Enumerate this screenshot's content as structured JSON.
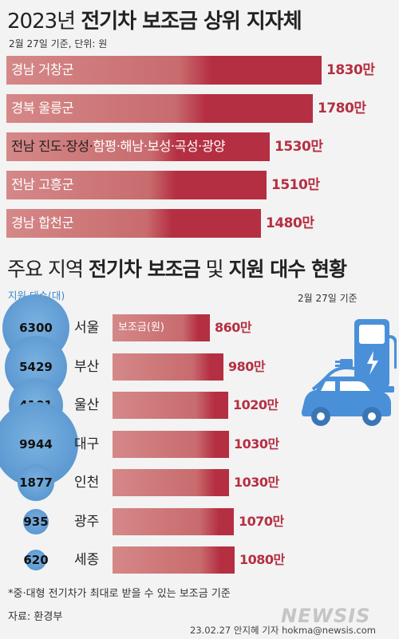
{
  "title1": {
    "year": "2023년",
    "main": "전기차 보조금 상위 지자체"
  },
  "sub1": "2월 27일 기준, 단위: 원",
  "title2": {
    "pre": "주요 지역",
    "main": "전기차 보조금",
    "mid": "및",
    "post": "지원 대수 현황"
  },
  "count_label": "지원 대수(대)",
  "sub2": "2월 27일 기준",
  "bar_legend": "보조금(원)",
  "footnote": "*중·대형 전기차가 최대로 받을 수 있는 보조금 기준",
  "source": "자료: 환경부",
  "credit": "23.02.27  안지혜 기자  hokma@newsis.com",
  "logo": "NEWSIS",
  "colors": {
    "bar_light": "#d58888",
    "bar_dark": "#b52f42",
    "value": "#b52f42",
    "circle": "#5b97cf",
    "accent_blue": "#3d86c6"
  },
  "chart_data": [
    {
      "type": "bar",
      "orientation": "horizontal",
      "title": "2023년 전기차 보조금 상위 지자체",
      "subtitle": "2월 27일 기준, 단위: 원",
      "categories": [
        "경남 거창군",
        "경북 울릉군",
        "전남 진도·장성·함평·해남·보성·곡성·광양",
        "전남 고흥군",
        "경남 합천군"
      ],
      "values": [
        1830,
        1780,
        1530,
        1510,
        1480
      ],
      "value_labels": [
        "1830만",
        "1780만",
        "1530만",
        "1510만",
        "1480만"
      ],
      "xlim": [
        0,
        1830
      ]
    },
    {
      "type": "bar",
      "orientation": "horizontal",
      "title": "주요 지역 전기차 보조금 및 지원 대수 현황",
      "subtitle": "2월 27일 기준",
      "categories": [
        "서울",
        "부산",
        "울산",
        "대구",
        "인천",
        "광주",
        "세종"
      ],
      "series": [
        {
          "name": "보조금(원)",
          "values": [
            860,
            980,
            1020,
            1030,
            1030,
            1070,
            1080
          ],
          "value_labels": [
            "860만",
            "980만",
            "1020만",
            "1030만",
            "1030만",
            "1070만",
            "1080만"
          ]
        },
        {
          "name": "지원 대수(대)",
          "values": [
            6300,
            5429,
            4101,
            9944,
            1877,
            935,
            620
          ],
          "value_labels": [
            "6300",
            "5429",
            "4101",
            "9944",
            "1877",
            "935",
            "620"
          ]
        }
      ]
    }
  ]
}
